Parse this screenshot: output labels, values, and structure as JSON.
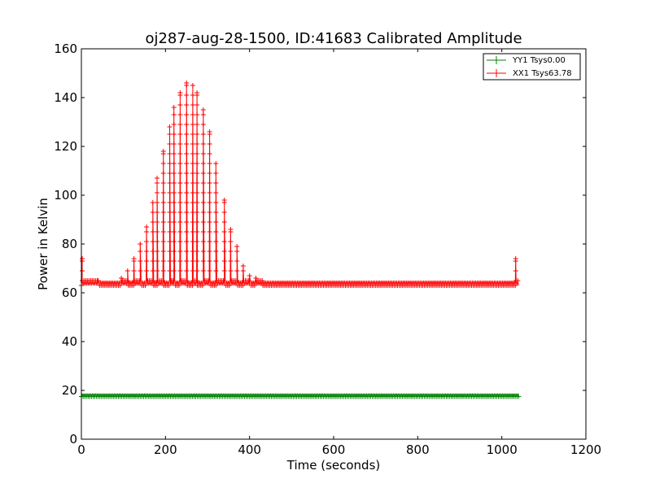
{
  "chart_data": {
    "type": "line",
    "title": "oj287-aug-28-1500, ID:41683 Calibrated Amplitude",
    "xlabel": "Time (seconds)",
    "ylabel": "Power in Kelvin",
    "xlim": [
      0,
      1200
    ],
    "ylim": [
      0,
      160
    ],
    "xticks": [
      0,
      200,
      400,
      600,
      800,
      1000,
      1200
    ],
    "yticks": [
      0,
      20,
      40,
      60,
      80,
      100,
      120,
      140,
      160
    ],
    "grid": false,
    "legend_position": "top-right",
    "marker": "+",
    "series": [
      {
        "name": "YY1 Tsys0.00",
        "color": "#008000",
        "baseline": 18,
        "x_range": [
          0,
          1040
        ],
        "variation": [
          17.5,
          18.5
        ],
        "peaks": []
      },
      {
        "name": "XX1 Tsys63.78",
        "color": "#ff0000",
        "baseline": 64,
        "x_range": [
          0,
          1040
        ],
        "variation": [
          63,
          65
        ],
        "start_spike": {
          "x": 2,
          "y": 74
        },
        "end_spike": {
          "x": 1033,
          "y": 74
        },
        "peaks": [
          {
            "x": 40,
            "y": 65
          },
          {
            "x": 95,
            "y": 66
          },
          {
            "x": 110,
            "y": 69
          },
          {
            "x": 125,
            "y": 74
          },
          {
            "x": 140,
            "y": 80
          },
          {
            "x": 155,
            "y": 87
          },
          {
            "x": 170,
            "y": 97
          },
          {
            "x": 180,
            "y": 107
          },
          {
            "x": 195,
            "y": 118
          },
          {
            "x": 210,
            "y": 128
          },
          {
            "x": 220,
            "y": 136
          },
          {
            "x": 235,
            "y": 142
          },
          {
            "x": 250,
            "y": 146
          },
          {
            "x": 265,
            "y": 145
          },
          {
            "x": 275,
            "y": 142
          },
          {
            "x": 290,
            "y": 135
          },
          {
            "x": 305,
            "y": 126
          },
          {
            "x": 320,
            "y": 113
          },
          {
            "x": 340,
            "y": 98
          },
          {
            "x": 355,
            "y": 86
          },
          {
            "x": 370,
            "y": 79
          },
          {
            "x": 385,
            "y": 71
          },
          {
            "x": 400,
            "y": 67
          },
          {
            "x": 415,
            "y": 66
          },
          {
            "x": 430,
            "y": 65
          }
        ]
      }
    ]
  }
}
